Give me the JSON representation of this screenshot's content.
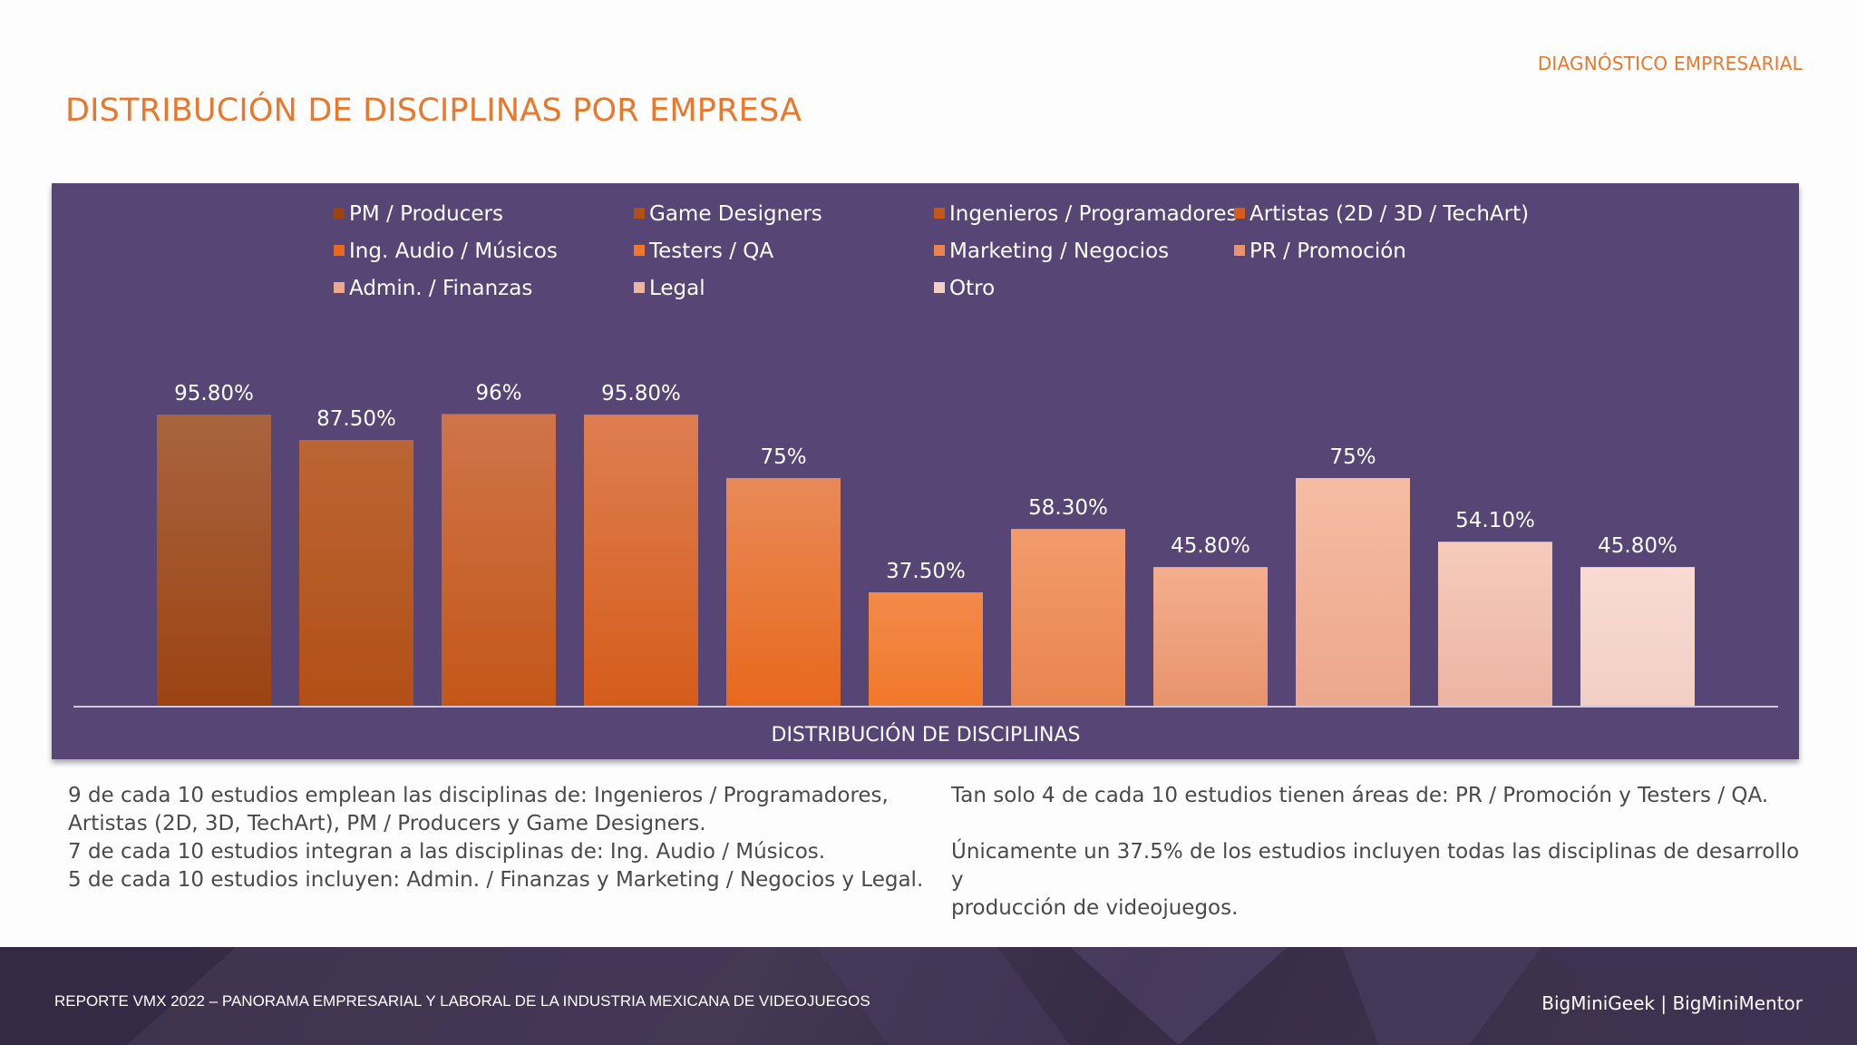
{
  "header": {
    "section_tag": "DIAGNÓSTICO EMPRESARIAL",
    "title": "DISTRIBUCIÓN DE DISCIPLINAS POR EMPRESA"
  },
  "chart_data": {
    "type": "bar",
    "xlabel": "DISTRIBUCIÓN DE DISCIPLINAS",
    "ylabel": "",
    "ylim": [
      0,
      100
    ],
    "grid": false,
    "legend_position": "top",
    "series": [
      {
        "name": "PM / Producers",
        "value": 95.8,
        "label": "95.80%",
        "color_top": "#a8643f",
        "color_bottom": "#9c4312"
      },
      {
        "name": "Game Designers",
        "value": 87.5,
        "label": "87.50%",
        "color_top": "#bb6534",
        "color_bottom": "#b24f16"
      },
      {
        "name": "Ingenieros / Programadores",
        "value": 96,
        "label": "96%",
        "color_top": "#cf744a",
        "color_bottom": "#c35718"
      },
      {
        "name": "Artistas (2D / 3D / TechArt)",
        "value": 95.8,
        "label": "95.80%",
        "color_top": "#dd7e52",
        "color_bottom": "#d65c1a"
      },
      {
        "name": "Ing. Audio / Músicos",
        "value": 75,
        "label": "75%",
        "color_top": "#e88a58",
        "color_bottom": "#e8681d"
      },
      {
        "name": "Testers / QA",
        "value": 37.5,
        "label": "37.50%",
        "color_top": "#f28a4a",
        "color_bottom": "#f1782b"
      },
      {
        "name": "Marketing / Negocios",
        "value": 58.3,
        "label": "58.30%",
        "color_top": "#f39b6c",
        "color_bottom": "#e8844e"
      },
      {
        "name": "PR / Promoción",
        "value": 45.8,
        "label": "45.80%",
        "color_top": "#f4ae8e",
        "color_bottom": "#e7936c"
      },
      {
        "name": "Admin. / Finanzas",
        "value": 75,
        "label": "75%",
        "color_top": "#f5bca4",
        "color_bottom": "#eca78c"
      },
      {
        "name": "Legal",
        "value": 54.1,
        "label": "54.10%",
        "color_top": "#f6cbbb",
        "color_bottom": "#ecb4a2"
      },
      {
        "name": "Otro",
        "value": 45.8,
        "label": "45.80%",
        "color_top": "#f8dbd2",
        "color_bottom": "#f2cfc3"
      }
    ]
  },
  "notes_left": [
    "9 de cada 10 estudios emplean las disciplinas de: Ingenieros / Programadores,",
    "Artistas (2D, 3D, TechArt), PM / Producers y Game Designers.",
    "7 de cada 10 estudios integran a las disciplinas de: Ing. Audio / Músicos.",
    "5 de cada 10 estudios incluyen: Admin. / Finanzas y Marketing / Negocios y Legal."
  ],
  "notes_right": {
    "first": "Tan solo 4 de cada 10 estudios tienen áreas de: PR / Promoción y Testers / QA.",
    "second_line1": "Únicamente un 37.5% de los estudios incluyen todas las disciplinas de desarrollo y",
    "second_line2": "producción de videojuegos."
  },
  "footer": {
    "left": "REPORTE VMX 2022 – PANORAMA EMPRESARIAL Y LABORAL DE LA INDUSTRIA MEXICANA DE VIDEOJUEGOS",
    "right": "BigMiniGeek  |  BigMiniMentor"
  },
  "colors": {
    "accent": "#e8782c",
    "chart_background": "#574576",
    "footer_background": "#3a2e4a"
  }
}
